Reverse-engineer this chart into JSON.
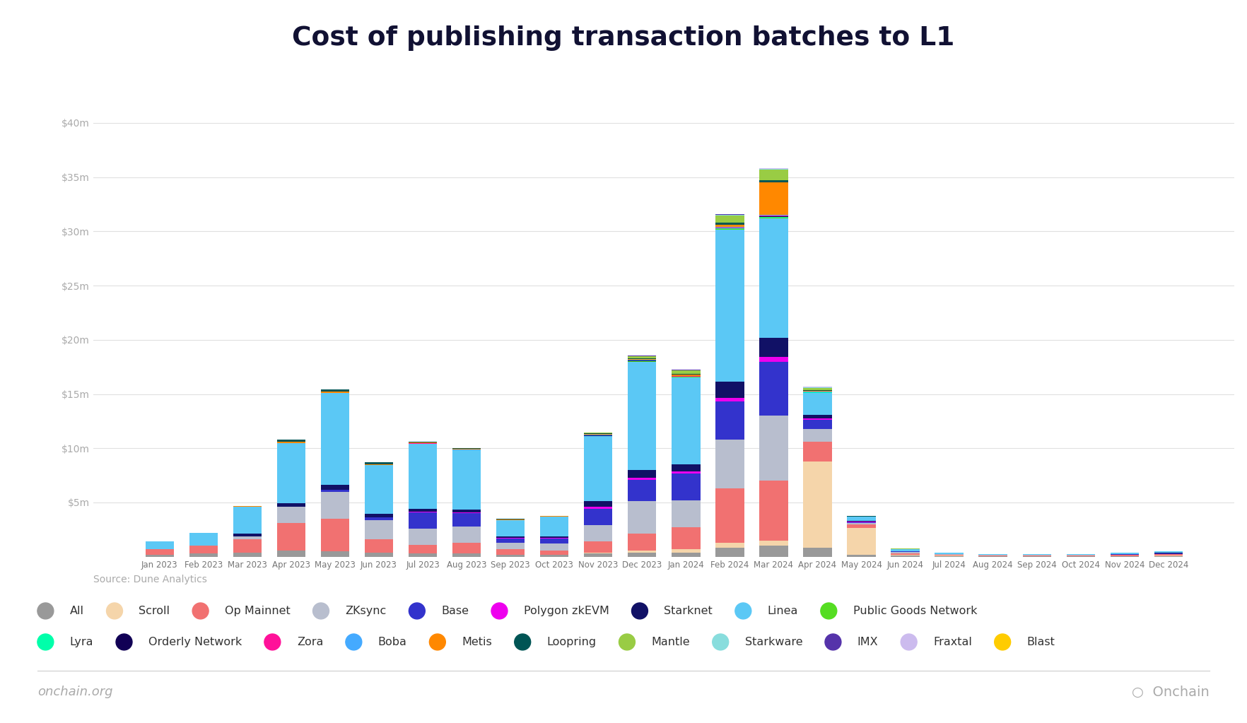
{
  "title": "Cost of publishing transaction batches to L1",
  "source": "Source: Dune Analytics",
  "footer_left": "onchain.org",
  "background_color": "#ffffff",
  "months": [
    "Jan 2023",
    "Feb 2023",
    "Mar 2023",
    "Apr 2023",
    "May 2023",
    "Jun 2023",
    "Jul 2023",
    "Aug 2023",
    "Sep 2023",
    "Oct 2023",
    "Nov 2023",
    "Dec 2023",
    "Jan 2024",
    "Feb 2024",
    "Mar 2024",
    "Apr 2024",
    "May 2024",
    "Jun 2024",
    "Jul 2024",
    "Aug 2024",
    "Sep 2024",
    "Oct 2024",
    "Nov 2024",
    "Dec 2024"
  ],
  "series": [
    {
      "name": "All",
      "color": "#999999",
      "values": [
        0.2,
        0.3,
        0.4,
        0.6,
        0.5,
        0.4,
        0.3,
        0.3,
        0.2,
        0.2,
        0.3,
        0.4,
        0.4,
        0.8,
        1.0,
        0.8,
        0.15,
        0.08,
        0.04,
        0.03,
        0.03,
        0.03,
        0.04,
        0.06
      ]
    },
    {
      "name": "Scroll",
      "color": "#f5d5aa",
      "values": [
        0.0,
        0.0,
        0.0,
        0.0,
        0.0,
        0.0,
        0.0,
        0.0,
        0.0,
        0.0,
        0.1,
        0.2,
        0.3,
        0.5,
        0.5,
        8.0,
        2.5,
        0.1,
        0.05,
        0.03,
        0.03,
        0.03,
        0.03,
        0.05
      ]
    },
    {
      "name": "Op Mainnet",
      "color": "#f17171",
      "values": [
        0.5,
        0.7,
        1.2,
        2.5,
        3.0,
        1.2,
        0.8,
        1.0,
        0.5,
        0.4,
        1.0,
        1.5,
        2.0,
        5.0,
        5.5,
        1.8,
        0.3,
        0.15,
        0.08,
        0.06,
        0.06,
        0.06,
        0.08,
        0.1
      ]
    },
    {
      "name": "ZKsync",
      "color": "#b8bece",
      "values": [
        0.0,
        0.0,
        0.3,
        1.5,
        2.5,
        1.8,
        1.5,
        1.5,
        0.6,
        0.6,
        1.5,
        3.0,
        2.5,
        4.5,
        6.0,
        1.2,
        0.15,
        0.08,
        0.04,
        0.03,
        0.03,
        0.03,
        0.04,
        0.06
      ]
    },
    {
      "name": "Base",
      "color": "#3333cc",
      "values": [
        0.0,
        0.0,
        0.0,
        0.0,
        0.15,
        0.2,
        1.5,
        1.2,
        0.4,
        0.5,
        1.5,
        2.0,
        2.5,
        3.5,
        5.0,
        0.8,
        0.1,
        0.06,
        0.03,
        0.02,
        0.02,
        0.02,
        0.03,
        0.05
      ]
    },
    {
      "name": "Polygon zkEVM",
      "color": "#ee00ee",
      "values": [
        0.0,
        0.0,
        0.0,
        0.0,
        0.05,
        0.04,
        0.08,
        0.08,
        0.03,
        0.03,
        0.2,
        0.2,
        0.15,
        0.35,
        0.4,
        0.15,
        0.03,
        0.01,
        0.01,
        0.01,
        0.01,
        0.01,
        0.01,
        0.01
      ]
    },
    {
      "name": "Starknet",
      "color": "#111166",
      "values": [
        0.0,
        0.0,
        0.2,
        0.35,
        0.4,
        0.3,
        0.25,
        0.25,
        0.15,
        0.15,
        0.5,
        0.7,
        0.7,
        1.5,
        1.8,
        0.35,
        0.06,
        0.03,
        0.01,
        0.01,
        0.01,
        0.01,
        0.01,
        0.02
      ]
    },
    {
      "name": "Linea",
      "color": "#5bc8f5",
      "values": [
        0.7,
        1.2,
        2.5,
        5.5,
        8.5,
        4.5,
        6.0,
        5.5,
        1.5,
        1.8,
        6.0,
        10.0,
        8.0,
        14.0,
        11.0,
        2.0,
        0.4,
        0.2,
        0.1,
        0.08,
        0.08,
        0.08,
        0.1,
        0.15
      ]
    },
    {
      "name": "Public Goods Network",
      "color": "#55dd22",
      "values": [
        0.0,
        0.0,
        0.0,
        0.0,
        0.0,
        0.0,
        0.0,
        0.0,
        0.0,
        0.0,
        0.04,
        0.04,
        0.04,
        0.08,
        0.08,
        0.03,
        0.01,
        0.0,
        0.0,
        0.0,
        0.0,
        0.0,
        0.0,
        0.0
      ]
    },
    {
      "name": "Lyra",
      "color": "#00ffaa",
      "values": [
        0.0,
        0.0,
        0.0,
        0.0,
        0.0,
        0.0,
        0.0,
        0.0,
        0.0,
        0.0,
        0.015,
        0.015,
        0.015,
        0.04,
        0.04,
        0.015,
        0.0,
        0.0,
        0.0,
        0.0,
        0.0,
        0.0,
        0.0,
        0.0
      ]
    },
    {
      "name": "Orderly Network",
      "color": "#110055",
      "values": [
        0.0,
        0.0,
        0.0,
        0.0,
        0.0,
        0.0,
        0.0,
        0.0,
        0.0,
        0.0,
        0.015,
        0.015,
        0.015,
        0.03,
        0.04,
        0.015,
        0.0,
        0.0,
        0.0,
        0.0,
        0.0,
        0.0,
        0.0,
        0.0
      ]
    },
    {
      "name": "Zora",
      "color": "#ff1199",
      "values": [
        0.0,
        0.0,
        0.0,
        0.0,
        0.0,
        0.0,
        0.015,
        0.015,
        0.008,
        0.008,
        0.04,
        0.04,
        0.04,
        0.08,
        0.08,
        0.03,
        0.008,
        0.0,
        0.0,
        0.0,
        0.0,
        0.0,
        0.0,
        0.0
      ]
    },
    {
      "name": "Boba",
      "color": "#44aaff",
      "values": [
        0.0,
        0.0,
        0.0,
        0.0,
        0.0,
        0.015,
        0.015,
        0.015,
        0.008,
        0.008,
        0.025,
        0.025,
        0.025,
        0.05,
        0.05,
        0.015,
        0.0,
        0.0,
        0.0,
        0.0,
        0.0,
        0.0,
        0.0,
        0.0
      ]
    },
    {
      "name": "Metis",
      "color": "#ff8800",
      "values": [
        0.0,
        0.0,
        0.08,
        0.15,
        0.15,
        0.08,
        0.08,
        0.08,
        0.04,
        0.04,
        0.08,
        0.08,
        0.08,
        0.2,
        3.0,
        0.1,
        0.015,
        0.008,
        0.0,
        0.0,
        0.0,
        0.0,
        0.0,
        0.008
      ]
    },
    {
      "name": "Loopring",
      "color": "#005555",
      "values": [
        0.0,
        0.0,
        0.0,
        0.2,
        0.2,
        0.15,
        0.08,
        0.08,
        0.04,
        0.04,
        0.08,
        0.08,
        0.08,
        0.15,
        0.2,
        0.08,
        0.015,
        0.008,
        0.0,
        0.0,
        0.0,
        0.0,
        0.0,
        0.0
      ]
    },
    {
      "name": "Mantle",
      "color": "#99cc44",
      "values": [
        0.0,
        0.0,
        0.0,
        0.0,
        0.0,
        0.0,
        0.0,
        0.0,
        0.0,
        0.0,
        0.04,
        0.2,
        0.35,
        0.7,
        1.0,
        0.2,
        0.03,
        0.015,
        0.0,
        0.0,
        0.0,
        0.0,
        0.0,
        0.008
      ]
    },
    {
      "name": "Starkware",
      "color": "#88dddd",
      "values": [
        0.0,
        0.0,
        0.0,
        0.0,
        0.0,
        0.0,
        0.0,
        0.0,
        0.0,
        0.0,
        0.015,
        0.015,
        0.015,
        0.04,
        0.04,
        0.015,
        0.0,
        0.0,
        0.0,
        0.0,
        0.0,
        0.0,
        0.0,
        0.0
      ]
    },
    {
      "name": "IMX",
      "color": "#5533aa",
      "values": [
        0.0,
        0.0,
        0.0,
        0.0,
        0.0,
        0.0,
        0.0,
        0.0,
        0.0,
        0.0,
        0.015,
        0.015,
        0.015,
        0.04,
        0.04,
        0.015,
        0.0,
        0.0,
        0.0,
        0.0,
        0.0,
        0.0,
        0.0,
        0.0
      ]
    },
    {
      "name": "Fraxtal",
      "color": "#ccbbee",
      "values": [
        0.0,
        0.0,
        0.0,
        0.0,
        0.0,
        0.0,
        0.0,
        0.0,
        0.0,
        0.0,
        0.0,
        0.0,
        0.0,
        0.0,
        0.04,
        0.04,
        0.008,
        0.0,
        0.0,
        0.0,
        0.0,
        0.0,
        0.0,
        0.0
      ]
    },
    {
      "name": "Blast",
      "color": "#ffcc00",
      "values": [
        0.0,
        0.0,
        0.0,
        0.0,
        0.0,
        0.0,
        0.0,
        0.0,
        0.0,
        0.0,
        0.0,
        0.0,
        0.0,
        0.0,
        0.04,
        0.04,
        0.0,
        0.0,
        0.0,
        0.0,
        0.0,
        0.0,
        0.0,
        0.0
      ]
    }
  ],
  "ylim_max": 42000000,
  "yticks": [
    0,
    5000000,
    10000000,
    15000000,
    20000000,
    25000000,
    30000000,
    35000000,
    40000000
  ],
  "ytick_labels": [
    "",
    "$5m",
    "$10m",
    "$15m",
    "$20m",
    "$25m",
    "$30m",
    "$35m",
    "$40m"
  ]
}
